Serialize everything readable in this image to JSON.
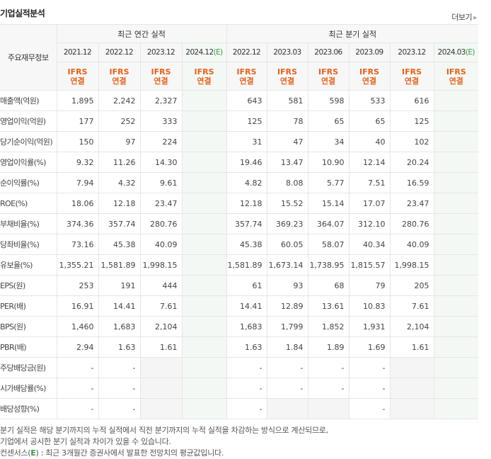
{
  "header": {
    "title": "기업실적분석",
    "more_label": "더보기"
  },
  "table": {
    "label_header": "주요재무정보",
    "annual_group": "최근 연간 실적",
    "quarterly_group": "최근 분기 실적",
    "estimate_marker": "(E)",
    "annual_periods": [
      "2021.12",
      "2022.12",
      "2023.12",
      "2024.12"
    ],
    "quarterly_periods": [
      "2022.12",
      "2023.03",
      "2023.06",
      "2023.09",
      "2023.12",
      "2024.03"
    ],
    "basis_line1": "IFRS",
    "basis_line2": "연결",
    "rows": [
      {
        "label": "매출액(억원)",
        "annual": [
          "1,895",
          "2,242",
          "2,327",
          ""
        ],
        "quarterly": [
          "643",
          "581",
          "598",
          "533",
          "616",
          ""
        ]
      },
      {
        "label": "영업이익(억원)",
        "annual": [
          "177",
          "252",
          "333",
          ""
        ],
        "quarterly": [
          "125",
          "78",
          "65",
          "65",
          "125",
          ""
        ]
      },
      {
        "label": "당기순이익(억원)",
        "annual": [
          "150",
          "97",
          "224",
          ""
        ],
        "quarterly": [
          "31",
          "47",
          "34",
          "40",
          "102",
          ""
        ]
      },
      {
        "label": "영업이익률(%)",
        "annual": [
          "9.32",
          "11.26",
          "14.30",
          ""
        ],
        "quarterly": [
          "19.46",
          "13.47",
          "10.90",
          "12.14",
          "20.24",
          ""
        ]
      },
      {
        "label": "순이익률(%)",
        "annual": [
          "7.94",
          "4.32",
          "9.61",
          ""
        ],
        "quarterly": [
          "4.82",
          "8.08",
          "5.77",
          "7.51",
          "16.59",
          ""
        ]
      },
      {
        "label": "ROE(%)",
        "annual": [
          "18.06",
          "12.18",
          "23.47",
          ""
        ],
        "quarterly": [
          "12.18",
          "15.52",
          "15.14",
          "17.07",
          "23.47",
          ""
        ]
      },
      {
        "label": "부채비율(%)",
        "annual": [
          "374.36",
          "357.74",
          "280.76",
          ""
        ],
        "quarterly": [
          "357.74",
          "369.23",
          "364.07",
          "312.10",
          "280.76",
          ""
        ]
      },
      {
        "label": "당좌비율(%)",
        "annual": [
          "73.16",
          "45.38",
          "40.09",
          ""
        ],
        "quarterly": [
          "45.38",
          "60.05",
          "58.07",
          "40.34",
          "40.09",
          ""
        ]
      },
      {
        "label": "유보율(%)",
        "annual": [
          "1,355.21",
          "1,581.89",
          "1,998.15",
          ""
        ],
        "quarterly": [
          "1,581.89",
          "1,673.14",
          "1,738.95",
          "1,815.57",
          "1,998.15",
          ""
        ]
      },
      {
        "label": "EPS(원)",
        "annual": [
          "253",
          "191",
          "444",
          ""
        ],
        "quarterly": [
          "61",
          "93",
          "68",
          "79",
          "205",
          ""
        ]
      },
      {
        "label": "PER(배)",
        "annual": [
          "16.91",
          "14.41",
          "7.61",
          ""
        ],
        "quarterly": [
          "14.41",
          "12.89",
          "13.61",
          "10.83",
          "7.61",
          ""
        ]
      },
      {
        "label": "BPS(원)",
        "annual": [
          "1,460",
          "1,683",
          "2,104",
          ""
        ],
        "quarterly": [
          "1,683",
          "1,799",
          "1,852",
          "1,931",
          "2,104",
          ""
        ]
      },
      {
        "label": "PBR(배)",
        "annual": [
          "2.94",
          "1.63",
          "1.61",
          ""
        ],
        "quarterly": [
          "1.63",
          "1.84",
          "1.89",
          "1.69",
          "1.61",
          ""
        ]
      },
      {
        "label": "주당배당금(원)",
        "annual": [
          "-",
          "-",
          "",
          ""
        ],
        "quarterly": [
          "-",
          "-",
          "-",
          "-",
          "",
          ""
        ]
      },
      {
        "label": "시가배당률(%)",
        "annual": [
          "-",
          "-",
          "",
          ""
        ],
        "quarterly": [
          "-",
          "-",
          "-",
          "-",
          "",
          ""
        ]
      },
      {
        "label": "배당성향(%)",
        "annual": [
          "-",
          "-",
          "",
          ""
        ],
        "quarterly": [
          "-",
          "",
          "",
          "-",
          "",
          ""
        ]
      }
    ]
  },
  "notes": {
    "line1": "분기 실적은 해당 분기까지의 누적 실적에서 직전 분기까지의 누적 실적을 차감하는 방식으로 계산되므로,",
    "line2": "기업에서 공시한 분기 실적과 차이가 있을 수 있습니다.",
    "line3_prefix": "컨센서스(",
    "line3_marker": "E",
    "line3_suffix": ") : 최근 3개월간 증권사에서 발표한 전망치의 평균값입니다."
  }
}
